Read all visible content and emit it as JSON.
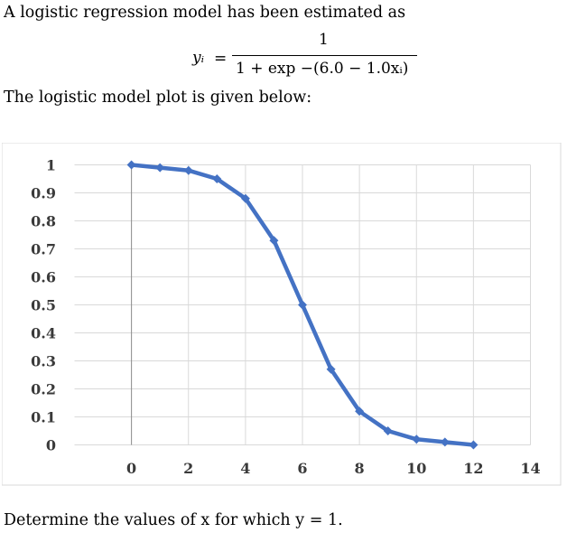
{
  "intro_text": "A logistic regression model has been estimated as",
  "equation": {
    "lhs": "yᵢ",
    "equals": "=",
    "numerator": "1",
    "denominator": "1 + exp −(6.0 − 1.0xᵢ)"
  },
  "plot_intro_text": "The logistic model plot is given below:",
  "question_text": "Determine the values of x for which y = 1.",
  "chart_data": {
    "type": "line",
    "title": "",
    "xlabel": "",
    "ylabel": "",
    "xlim": [
      -2,
      14
    ],
    "ylim": [
      0,
      1
    ],
    "x_ticks": [
      0,
      2,
      4,
      6,
      8,
      10,
      12,
      14
    ],
    "y_ticks": [
      0,
      0.1,
      0.2,
      0.3,
      0.4,
      0.5,
      0.6,
      0.7,
      0.8,
      0.9,
      1
    ],
    "x_tick_labels": [
      "0",
      "2",
      "4",
      "6",
      "8",
      "10",
      "12",
      "14"
    ],
    "y_tick_labels": [
      "0",
      "0.1",
      "0.2",
      "0.3",
      "0.4",
      "0.5",
      "0.6",
      "0.7",
      "0.8",
      "0.9",
      "1"
    ],
    "grid": true,
    "legend": "none",
    "series": [
      {
        "x": [
          0,
          1,
          2,
          3,
          4,
          5,
          6,
          7,
          8,
          9,
          10,
          11,
          12
        ],
        "y": [
          1.0,
          0.99,
          0.98,
          0.95,
          0.88,
          0.73,
          0.5,
          0.27,
          0.12,
          0.05,
          0.02,
          0.01,
          0.0
        ],
        "color": "#4472c4",
        "marker": "diamond"
      }
    ]
  }
}
